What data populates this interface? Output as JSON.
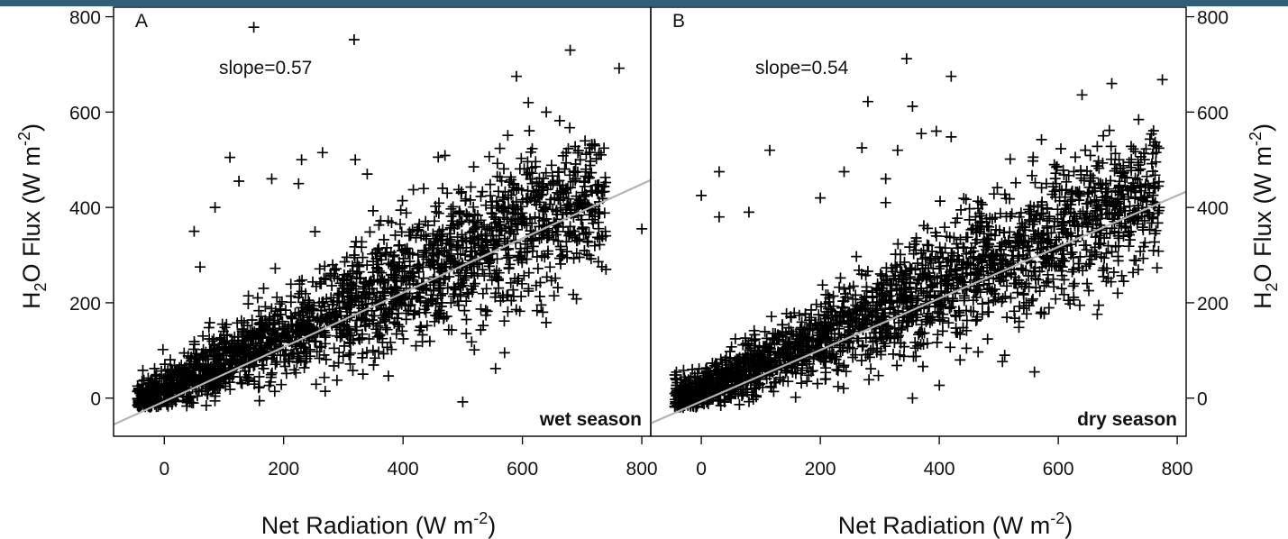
{
  "colors": {
    "top_band": "#2f5f7a",
    "points": "#000000",
    "fit_line": "#b3b3b3",
    "frame": "#000000",
    "text": "#111111"
  },
  "chart_data": [
    {
      "type": "scatter",
      "panel_label": "A",
      "annotation": "slope=0.57",
      "season_label": "wet season",
      "marker": "plus",
      "xlabel": {
        "main": "Net Radiation (W m",
        "sup": "-2",
        "close": ")"
      },
      "ylabel": {
        "pre": "H",
        "sub": "2",
        "mid": "O Flux (W m",
        "sup": "-2",
        "close": ")"
      },
      "ylabel_side": "left",
      "xlim": [
        -85,
        815
      ],
      "ylim": [
        -80,
        820
      ],
      "xticks": [
        0,
        200,
        400,
        600,
        800
      ],
      "yticks": [
        0,
        200,
        400,
        600,
        800
      ],
      "xtick_labels": [
        "0",
        "200",
        "400",
        "600",
        "800"
      ],
      "ytick_labels": [
        "0",
        "200",
        "400",
        "600",
        "800"
      ],
      "fit": {
        "slope": 0.57,
        "intercept": -7
      },
      "cloud": {
        "x_min": -45,
        "x_max": 740,
        "y_noise_sd": 62,
        "count": 2200
      },
      "outliers": [
        [
          150,
          778
        ],
        [
          318,
          752
        ],
        [
          680,
          730
        ],
        [
          762,
          692
        ],
        [
          590,
          675
        ],
        [
          800,
          355
        ],
        [
          700,
          355
        ],
        [
          740,
          270
        ],
        [
          515,
          118
        ],
        [
          500,
          -8
        ],
        [
          555,
          62
        ],
        [
          570,
          95
        ],
        [
          230,
          500
        ],
        [
          265,
          515
        ],
        [
          60,
          275
        ],
        [
          110,
          505
        ],
        [
          125,
          455
        ],
        [
          180,
          460
        ],
        [
          225,
          450
        ],
        [
          85,
          400
        ],
        [
          50,
          350
        ],
        [
          320,
          500
        ],
        [
          340,
          470
        ],
        [
          610,
          620
        ],
        [
          640,
          600
        ]
      ]
    },
    {
      "type": "scatter",
      "panel_label": "B",
      "annotation": "slope=0.54",
      "season_label": "dry season",
      "marker": "plus",
      "xlabel": {
        "main": "Net Radiation (W m",
        "sup": "-2",
        "close": ")"
      },
      "ylabel": {
        "pre": "H",
        "sub": "2",
        "mid": "O Flux (W m",
        "sup": "-2",
        "close": ")"
      },
      "ylabel_side": "right",
      "xlim": [
        -85,
        815
      ],
      "ylim": [
        -80,
        820
      ],
      "xticks": [
        0,
        200,
        400,
        600,
        800
      ],
      "yticks": [
        0,
        200,
        400,
        600,
        800
      ],
      "xtick_labels": [
        "0",
        "200",
        "400",
        "600",
        "800"
      ],
      "ytick_labels": [
        "0",
        "200",
        "400",
        "600",
        "800"
      ],
      "fit": {
        "slope": 0.54,
        "intercept": -7
      },
      "cloud": {
        "x_min": -45,
        "x_max": 770,
        "y_noise_sd": 58,
        "count": 2200
      },
      "outliers": [
        [
          345,
          712
        ],
        [
          420,
          675
        ],
        [
          690,
          660
        ],
        [
          775,
          668
        ],
        [
          640,
          636
        ],
        [
          280,
          622
        ],
        [
          355,
          612
        ],
        [
          270,
          525
        ],
        [
          115,
          520
        ],
        [
          30,
          475
        ],
        [
          0,
          425
        ],
        [
          80,
          390
        ],
        [
          30,
          380
        ],
        [
          200,
          420
        ],
        [
          330,
          520
        ],
        [
          240,
          475
        ],
        [
          310,
          460
        ],
        [
          395,
          560
        ],
        [
          420,
          548
        ],
        [
          370,
          555
        ],
        [
          310,
          410
        ],
        [
          355,
          0
        ],
        [
          435,
          80
        ],
        [
          510,
          90
        ],
        [
          560,
          55
        ],
        [
          700,
          220
        ],
        [
          710,
          245
        ],
        [
          735,
          380
        ],
        [
          770,
          400
        ],
        [
          760,
          530
        ]
      ]
    }
  ]
}
